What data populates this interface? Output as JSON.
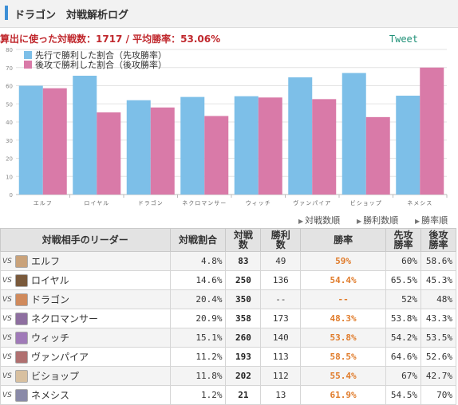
{
  "header": {
    "title": "ドラゴン　対戦解析ログ"
  },
  "summary": {
    "text": "算出に使った対戦数：1717 / 平均勝率：53.06%"
  },
  "tweet": {
    "label": "Tweet"
  },
  "colors": {
    "first": "#7dbfe8",
    "second": "#d97aa8",
    "winrate": "#e07b2a",
    "accent": "#3c8fd6"
  },
  "chart_data": {
    "type": "bar",
    "categories": [
      "エルフ",
      "ロイヤル",
      "ドラゴン",
      "ネクロマンサー",
      "ウィッチ",
      "ヴァンパイア",
      "ビショップ",
      "ネメシス"
    ],
    "series": [
      {
        "name": "先行で勝利した割合（先攻勝率）",
        "values": [
          60.0,
          65.5,
          52.0,
          53.8,
          54.2,
          64.6,
          67.0,
          54.5
        ]
      },
      {
        "name": "後攻で勝利した割合（後攻勝率）",
        "values": [
          58.6,
          45.3,
          48.0,
          43.3,
          53.5,
          52.6,
          42.7,
          70.0
        ]
      }
    ],
    "yticks": [
      0,
      10,
      20,
      30,
      40,
      50,
      60,
      70,
      80
    ],
    "ylim": [
      0,
      80
    ],
    "grid": true,
    "legend": "top-left"
  },
  "sort": {
    "by_games": "対戦数順",
    "by_wins": "勝利数順",
    "by_rate": "勝率順"
  },
  "table": {
    "headers": {
      "leader": "対戦相手のリーダー",
      "share": "対戦割合",
      "games": "対戦数",
      "wins": "勝利数",
      "rate": "勝率",
      "first": "先攻勝率",
      "second": "後攻勝率"
    },
    "vs": "VS",
    "rows": [
      {
        "name": "エルフ",
        "share": "4.8%",
        "games": "83",
        "wins": "49",
        "rate": "59%",
        "first": "60%",
        "second": "58.6%",
        "avatar": "#c9a27a"
      },
      {
        "name": "ロイヤル",
        "share": "14.6%",
        "games": "250",
        "wins": "136",
        "rate": "54.4%",
        "first": "65.5%",
        "second": "45.3%",
        "avatar": "#7a5a3c"
      },
      {
        "name": "ドラゴン",
        "share": "20.4%",
        "games": "350",
        "wins": "--",
        "rate": "--",
        "first": "52%",
        "second": "48%",
        "avatar": "#d08a5c"
      },
      {
        "name": "ネクロマンサー",
        "share": "20.9%",
        "games": "358",
        "wins": "173",
        "rate": "48.3%",
        "first": "53.8%",
        "second": "43.3%",
        "avatar": "#8e6fa0"
      },
      {
        "name": "ウィッチ",
        "share": "15.1%",
        "games": "260",
        "wins": "140",
        "rate": "53.8%",
        "first": "54.2%",
        "second": "53.5%",
        "avatar": "#a07ab8"
      },
      {
        "name": "ヴァンパイア",
        "share": "11.2%",
        "games": "193",
        "wins": "113",
        "rate": "58.5%",
        "first": "64.6%",
        "second": "52.6%",
        "avatar": "#b07070"
      },
      {
        "name": "ビショップ",
        "share": "11.8%",
        "games": "202",
        "wins": "112",
        "rate": "55.4%",
        "first": "67%",
        "second": "42.7%",
        "avatar": "#d8c0a0"
      },
      {
        "name": "ネメシス",
        "share": "1.2%",
        "games": "21",
        "wins": "13",
        "rate": "61.9%",
        "first": "54.5%",
        "second": "70%",
        "avatar": "#8a8aa8"
      }
    ]
  }
}
